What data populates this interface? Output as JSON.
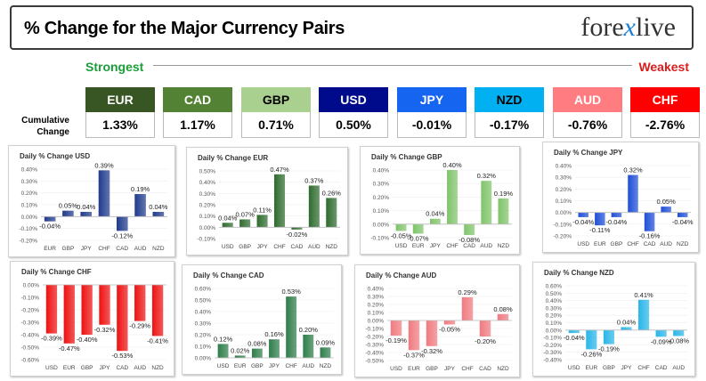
{
  "header": {
    "title": "% Change for the Major Currency Pairs",
    "logo_left": "fore",
    "logo_x": "x",
    "logo_right": "live"
  },
  "legend": {
    "strongest": "Strongest",
    "weakest": "Weakest",
    "cumulative": "Cumulative Change"
  },
  "cumulative": [
    {
      "ccy": "EUR",
      "value": "1.33%",
      "color": "#375623"
    },
    {
      "ccy": "CAD",
      "value": "1.17%",
      "color": "#548235"
    },
    {
      "ccy": "GBP",
      "value": "0.71%",
      "color": "#a9d08e",
      "text": "#000000"
    },
    {
      "ccy": "USD",
      "value": "0.50%",
      "color": "#000b8c"
    },
    {
      "ccy": "JPY",
      "value": "-0.01%",
      "color": "#1565f0"
    },
    {
      "ccy": "NZD",
      "value": "-0.17%",
      "color": "#00b0f0",
      "text": "#000000"
    },
    {
      "ccy": "AUD",
      "value": "-0.76%",
      "color": "#ff7c80"
    },
    {
      "ccy": "CHF",
      "value": "-2.76%",
      "color": "#ff0000"
    }
  ],
  "chart_data": [
    {
      "type": "bar",
      "title": "Daily % Change USD",
      "categories": [
        "EUR",
        "GBP",
        "JPY",
        "CHF",
        "CAD",
        "AUD",
        "NZD"
      ],
      "values": [
        -0.04,
        0.05,
        0.04,
        0.39,
        -0.12,
        0.19,
        0.04
      ],
      "labels": [
        "-0.04%",
        "0.05%",
        "0.04%",
        "0.39%",
        "-0.12%",
        "0.19%",
        "0.04%"
      ],
      "ylim": [
        -0.2,
        0.4
      ],
      "ticks": [
        "0.40%",
        "0.30%",
        "0.20%",
        "0.10%",
        "0.00%",
        "-0.10%",
        "-0.20%"
      ],
      "color": "#1f3b8c"
    },
    {
      "type": "bar",
      "title": "Daily % Change EUR",
      "categories": [
        "USD",
        "GBP",
        "JPY",
        "CHF",
        "CAD",
        "AUD",
        "NZD"
      ],
      "values": [
        0.04,
        0.07,
        0.11,
        0.47,
        -0.02,
        0.37,
        0.26
      ],
      "labels": [
        "0.04%",
        "0.07%",
        "0.11%",
        "0.47%",
        "-0.02%",
        "0.37%",
        "0.26%"
      ],
      "ylim": [
        -0.1,
        0.5
      ],
      "ticks": [
        "0.50%",
        "0.40%",
        "0.30%",
        "0.20%",
        "0.10%",
        "0.00%",
        "-0.10%"
      ],
      "color": "#2e6b2e"
    },
    {
      "type": "bar",
      "title": "Daily % Change GBP",
      "categories": [
        "USD",
        "EUR",
        "JPY",
        "CHF",
        "CAD",
        "AUD",
        "NZD"
      ],
      "values": [
        -0.05,
        -0.07,
        0.04,
        0.4,
        -0.08,
        0.32,
        0.19
      ],
      "labels": [
        "-0.05%",
        "-0.07%",
        "0.04%",
        "0.40%",
        "-0.08%",
        "0.32%",
        "0.19%"
      ],
      "ylim": [
        -0.1,
        0.4
      ],
      "ticks": [
        "0.40%",
        "0.30%",
        "0.20%",
        "0.10%",
        "0.00%",
        "-0.10%"
      ],
      "color": "#7fc46a"
    },
    {
      "type": "bar",
      "title": "Daily % Change JPY",
      "categories": [
        "USD",
        "EUR",
        "GBP",
        "CHF",
        "CAD",
        "AUD",
        "NZD"
      ],
      "values": [
        -0.04,
        -0.11,
        -0.04,
        0.32,
        -0.16,
        0.05,
        -0.04
      ],
      "labels": [
        "-0.04%",
        "-0.11%",
        "-0.04%",
        "0.32%",
        "-0.16%",
        "0.05%",
        "-0.04%"
      ],
      "ylim": [
        -0.2,
        0.4
      ],
      "ticks": [
        "0.40%",
        "0.30%",
        "0.20%",
        "0.10%",
        "0.00%",
        "-0.10%",
        "-0.20%"
      ],
      "color": "#1f4fd8"
    },
    {
      "type": "bar",
      "title": "Daily % Change CHF",
      "categories": [
        "USD",
        "EUR",
        "GBP",
        "JPY",
        "CAD",
        "AUD",
        "NZD"
      ],
      "values": [
        -0.39,
        -0.47,
        -0.4,
        -0.32,
        -0.53,
        -0.29,
        -0.41
      ],
      "labels": [
        "-0.39%",
        "-0.47%",
        "-0.40%",
        "-0.32%",
        "-0.53%",
        "-0.29%",
        "-0.41%"
      ],
      "ylim": [
        -0.6,
        0.0
      ],
      "ticks": [
        "0.00%",
        "-0.10%",
        "-0.20%",
        "-0.30%",
        "-0.40%",
        "-0.50%",
        "-0.60%"
      ],
      "color": "#ee1111"
    },
    {
      "type": "bar",
      "title": "Daily % Change CAD",
      "categories": [
        "USD",
        "EUR",
        "GBP",
        "JPY",
        "CHF",
        "AUD",
        "NZD"
      ],
      "values": [
        0.12,
        0.02,
        0.08,
        0.16,
        0.53,
        0.2,
        0.09
      ],
      "labels": [
        "0.12%",
        "0.02%",
        "0.08%",
        "0.16%",
        "0.53%",
        "0.20%",
        "0.09%"
      ],
      "ylim": [
        0.0,
        0.6
      ],
      "ticks": [
        "0.60%",
        "0.50%",
        "0.40%",
        "0.30%",
        "0.20%",
        "0.10%",
        "0.00%"
      ],
      "color": "#2e7d4a"
    },
    {
      "type": "bar",
      "title": "Daily % Change AUD",
      "categories": [
        "USD",
        "EUR",
        "GBP",
        "JPY",
        "CHF",
        "CAD",
        "NZD"
      ],
      "values": [
        -0.19,
        -0.37,
        -0.32,
        -0.05,
        0.29,
        -0.2,
        0.08
      ],
      "labels": [
        "-0.19%",
        "-0.37%",
        "-0.32%",
        "-0.05%",
        "0.29%",
        "-0.20%",
        "0.08%"
      ],
      "ylim": [
        -0.5,
        0.4
      ],
      "ticks": [
        "0.40%",
        "0.30%",
        "0.20%",
        "0.10%",
        "0.00%",
        "-0.10%",
        "-0.20%",
        "-0.30%",
        "-0.40%",
        "-0.50%"
      ],
      "color": "#f07a80"
    },
    {
      "type": "bar",
      "title": "Daily % Change NZD",
      "categories": [
        "USD",
        "EUR",
        "GBP",
        "JPY",
        "CHF",
        "CAD",
        "AUD"
      ],
      "values": [
        -0.04,
        -0.26,
        -0.19,
        0.04,
        0.41,
        -0.09,
        -0.08
      ],
      "labels": [
        "-0.04%",
        "-0.26%",
        "-0.19%",
        "0.04%",
        "0.41%",
        "-0.09%",
        "-0.08%"
      ],
      "ylim": [
        -0.4,
        0.6
      ],
      "ticks": [
        "0.60%",
        "0.50%",
        "0.40%",
        "0.30%",
        "0.20%",
        "0.10%",
        "0.00%",
        "-0.10%",
        "-0.20%",
        "-0.30%",
        "-0.40%"
      ],
      "color": "#29b6e8"
    }
  ]
}
